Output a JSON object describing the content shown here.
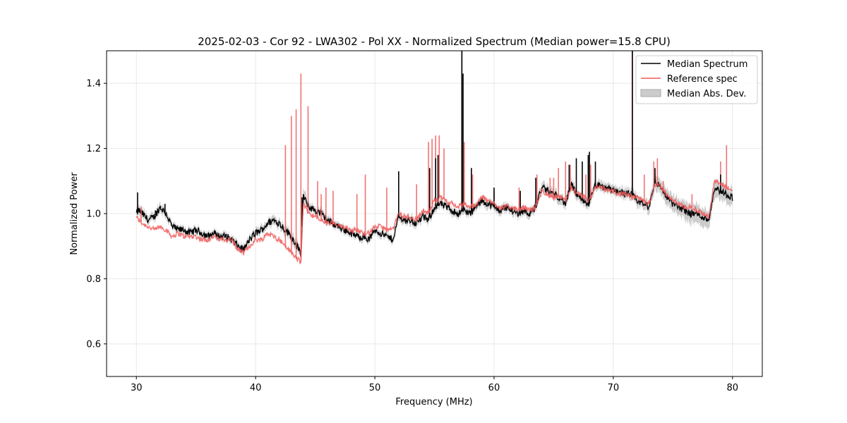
{
  "chart_data": {
    "type": "line",
    "title": "2025-02-03 - Cor 92 - LWA302 - Pol XX - Normalized Spectrum (Median power=15.8 CPU)",
    "xlabel": "Frequency (MHz)",
    "ylabel": "Normalized Power",
    "xlim": [
      27.5,
      82.5
    ],
    "ylim": [
      0.5,
      1.5
    ],
    "xticks": [
      30,
      40,
      50,
      60,
      70,
      80
    ],
    "yticks": [
      0.6,
      0.8,
      1.0,
      1.2,
      1.4
    ],
    "xtick_labels": [
      "30",
      "40",
      "50",
      "60",
      "70",
      "80"
    ],
    "ytick_labels": [
      "0.6",
      "0.8",
      "1.0",
      "1.2",
      "1.4"
    ],
    "grid": true,
    "legend_position": "top-right",
    "legend": [
      "Median Spectrum",
      "Reference spec",
      "Median Abs. Dev."
    ],
    "colors": {
      "median": "#000000",
      "reference": "#f05a5a",
      "mad": "#bbbbbb",
      "overlap": "#8b0000"
    },
    "series": [
      {
        "name": "Median Spectrum",
        "x": [
          30.0,
          30.2,
          30.5,
          31.0,
          31.5,
          32.0,
          32.5,
          33.0,
          33.5,
          34.0,
          34.5,
          35.0,
          35.5,
          36.0,
          36.5,
          37.0,
          37.5,
          38.0,
          38.5,
          39.0,
          39.5,
          40.0,
          40.5,
          41.0,
          41.5,
          42.0,
          42.5,
          43.0,
          43.5,
          43.8,
          44.0,
          44.5,
          45.0,
          45.5,
          46.0,
          46.5,
          47.0,
          47.5,
          48.0,
          48.5,
          49.0,
          49.5,
          50.0,
          50.5,
          51.0,
          51.5,
          52.0,
          52.5,
          53.0,
          53.5,
          54.0,
          54.5,
          55.0,
          55.5,
          56.0,
          56.5,
          57.0,
          57.5,
          58.0,
          58.5,
          59.0,
          59.5,
          60.0,
          60.5,
          61.0,
          61.5,
          62.0,
          62.5,
          63.0,
          63.5,
          64.0,
          64.5,
          65.0,
          65.5,
          66.0,
          66.5,
          67.0,
          67.5,
          68.0,
          68.5,
          69.0,
          69.5,
          70.0,
          70.5,
          71.0,
          71.5,
          72.0,
          72.5,
          73.0,
          73.5,
          74.0,
          74.5,
          75.0,
          75.5,
          76.0,
          76.5,
          77.0,
          77.5,
          78.0,
          78.5,
          79.0,
          79.5,
          80.0
        ],
        "y": [
          1.0,
          1.01,
          1.0,
          0.98,
          0.99,
          1.02,
          1.0,
          0.96,
          0.95,
          0.95,
          0.94,
          0.95,
          0.94,
          0.93,
          0.94,
          0.93,
          0.93,
          0.92,
          0.9,
          0.89,
          0.92,
          0.94,
          0.95,
          0.97,
          0.98,
          0.97,
          0.95,
          0.93,
          0.9,
          0.87,
          1.05,
          1.02,
          1.01,
          1.0,
          0.98,
          0.97,
          0.96,
          0.95,
          0.94,
          0.93,
          0.93,
          0.92,
          0.95,
          0.94,
          0.93,
          0.92,
          0.99,
          0.98,
          0.98,
          0.97,
          0.99,
          0.98,
          1.02,
          1.03,
          1.02,
          1.01,
          1.0,
          1.01,
          1.0,
          1.02,
          1.04,
          1.03,
          1.02,
          1.01,
          1.02,
          1.01,
          1.0,
          1.01,
          1.0,
          1.02,
          1.08,
          1.07,
          1.06,
          1.05,
          1.03,
          1.09,
          1.05,
          1.04,
          1.03,
          1.09,
          1.08,
          1.08,
          1.07,
          1.07,
          1.06,
          1.06,
          1.04,
          1.03,
          1.02,
          1.1,
          1.08,
          1.05,
          1.03,
          1.02,
          1.01,
          1.0,
          1.0,
          0.99,
          0.98,
          1.08,
          1.07,
          1.06,
          1.05
        ]
      },
      {
        "name": "Reference spec",
        "x": [
          30.0,
          30.2,
          30.5,
          31.0,
          31.5,
          32.0,
          32.5,
          33.0,
          33.5,
          34.0,
          34.5,
          35.0,
          35.5,
          36.0,
          36.5,
          37.0,
          37.5,
          38.0,
          38.5,
          39.0,
          39.5,
          40.0,
          40.5,
          41.0,
          41.5,
          42.0,
          42.5,
          43.0,
          43.5,
          43.8,
          44.0,
          44.5,
          45.0,
          45.5,
          46.0,
          46.5,
          47.0,
          47.5,
          48.0,
          48.5,
          49.0,
          49.5,
          50.0,
          50.5,
          51.0,
          51.5,
          52.0,
          52.5,
          53.0,
          53.5,
          54.0,
          54.5,
          55.0,
          55.5,
          56.0,
          56.5,
          57.0,
          57.5,
          58.0,
          58.5,
          59.0,
          59.5,
          60.0,
          60.5,
          61.0,
          61.5,
          62.0,
          62.5,
          63.0,
          63.5,
          64.0,
          64.5,
          65.0,
          65.5,
          66.0,
          66.5,
          67.0,
          67.5,
          68.0,
          68.5,
          69.0,
          69.5,
          70.0,
          70.5,
          71.0,
          71.5,
          72.0,
          72.5,
          73.0,
          73.5,
          74.0,
          74.5,
          75.0,
          75.5,
          76.0,
          76.5,
          77.0,
          77.5,
          78.0,
          78.5,
          79.0,
          79.5,
          80.0
        ],
        "y": [
          0.99,
          0.98,
          0.97,
          0.96,
          0.95,
          0.96,
          0.95,
          0.93,
          0.94,
          0.93,
          0.93,
          0.93,
          0.92,
          0.92,
          0.93,
          0.92,
          0.92,
          0.92,
          0.89,
          0.88,
          0.9,
          0.92,
          0.92,
          0.94,
          0.93,
          0.92,
          0.9,
          0.88,
          0.86,
          0.85,
          1.03,
          1.0,
          0.99,
          0.98,
          0.97,
          0.97,
          0.96,
          0.96,
          0.95,
          0.95,
          0.94,
          0.94,
          0.96,
          0.96,
          0.95,
          0.95,
          1.0,
          0.99,
          0.99,
          0.98,
          1.01,
          1.0,
          1.04,
          1.05,
          1.04,
          1.03,
          1.02,
          1.03,
          1.02,
          1.03,
          1.05,
          1.04,
          1.03,
          1.02,
          1.02,
          1.02,
          1.01,
          1.02,
          1.01,
          1.02,
          1.07,
          1.06,
          1.05,
          1.05,
          1.04,
          1.08,
          1.06,
          1.05,
          1.04,
          1.08,
          1.08,
          1.07,
          1.07,
          1.06,
          1.06,
          1.05,
          1.05,
          1.04,
          1.03,
          1.09,
          1.08,
          1.06,
          1.04,
          1.03,
          1.02,
          1.02,
          1.01,
          1.0,
          0.99,
          1.1,
          1.09,
          1.08,
          1.07
        ]
      },
      {
        "name": "Median Abs. Dev.",
        "mad": [
          0.01,
          0.015,
          0.015,
          0.012,
          0.012,
          0.014,
          0.012,
          0.01,
          0.01,
          0.01,
          0.01,
          0.01,
          0.01,
          0.01,
          0.01,
          0.01,
          0.01,
          0.01,
          0.012,
          0.012,
          0.01,
          0.012,
          0.012,
          0.012,
          0.012,
          0.012,
          0.014,
          0.014,
          0.015,
          0.015,
          0.02,
          0.012,
          0.012,
          0.012,
          0.012,
          0.01,
          0.01,
          0.01,
          0.01,
          0.01,
          0.01,
          0.01,
          0.01,
          0.01,
          0.01,
          0.01,
          0.012,
          0.012,
          0.012,
          0.012,
          0.012,
          0.012,
          0.012,
          0.012,
          0.012,
          0.012,
          0.012,
          0.012,
          0.012,
          0.012,
          0.012,
          0.012,
          0.012,
          0.012,
          0.012,
          0.012,
          0.012,
          0.012,
          0.012,
          0.012,
          0.014,
          0.014,
          0.014,
          0.014,
          0.014,
          0.014,
          0.014,
          0.014,
          0.014,
          0.014,
          0.014,
          0.014,
          0.014,
          0.014,
          0.014,
          0.016,
          0.016,
          0.016,
          0.018,
          0.02,
          0.022,
          0.022,
          0.024,
          0.024,
          0.024,
          0.026,
          0.026,
          0.026,
          0.024,
          0.026,
          0.026,
          0.024,
          0.024
        ]
      }
    ],
    "spikes_median": [
      [
        30.1,
        1.065
      ],
      [
        31.6,
        1.01
      ],
      [
        32.4,
        1.03
      ],
      [
        43.9,
        1.05
      ],
      [
        44.0,
        1.06
      ],
      [
        52.0,
        1.13
      ],
      [
        54.6,
        1.14
      ],
      [
        55.1,
        1.17
      ],
      [
        55.3,
        1.18
      ],
      [
        57.3,
        1.5
      ],
      [
        57.4,
        1.43
      ],
      [
        58.1,
        1.14
      ],
      [
        60.0,
        1.08
      ],
      [
        62.2,
        1.07
      ],
      [
        63.5,
        1.11
      ],
      [
        66.3,
        1.15
      ],
      [
        66.9,
        1.17
      ],
      [
        67.4,
        1.16
      ],
      [
        67.9,
        1.18
      ],
      [
        68.0,
        1.19
      ],
      [
        68.5,
        1.16
      ],
      [
        71.6,
        1.5
      ],
      [
        73.5,
        1.14
      ],
      [
        79.0,
        1.12
      ]
    ],
    "spikes_reference": [
      [
        30.4,
        1.02
      ],
      [
        42.5,
        1.21
      ],
      [
        43.0,
        1.3
      ],
      [
        43.4,
        1.32
      ],
      [
        43.8,
        1.43
      ],
      [
        44.4,
        1.33
      ],
      [
        45.2,
        1.1
      ],
      [
        45.5,
        1.06
      ],
      [
        45.9,
        1.08
      ],
      [
        46.5,
        1.07
      ],
      [
        48.5,
        1.06
      ],
      [
        49.2,
        1.12
      ],
      [
        51.0,
        1.08
      ],
      [
        53.5,
        1.09
      ],
      [
        54.5,
        1.22
      ],
      [
        54.8,
        1.23
      ],
      [
        55.1,
        1.24
      ],
      [
        55.4,
        1.24
      ],
      [
        55.8,
        1.2
      ],
      [
        57.3,
        1.5
      ],
      [
        57.5,
        1.22
      ],
      [
        58.2,
        1.12
      ],
      [
        60.0,
        1.07
      ],
      [
        62.1,
        1.08
      ],
      [
        63.6,
        1.12
      ],
      [
        64.7,
        1.11
      ],
      [
        65.0,
        1.11
      ],
      [
        65.4,
        1.14
      ],
      [
        66.0,
        1.16
      ],
      [
        66.4,
        1.15
      ],
      [
        67.7,
        1.12
      ],
      [
        68.1,
        1.15
      ],
      [
        71.6,
        1.5
      ],
      [
        72.6,
        1.12
      ],
      [
        73.4,
        1.16
      ],
      [
        73.7,
        1.17
      ],
      [
        74.2,
        1.1
      ],
      [
        76.6,
        1.06
      ],
      [
        79.0,
        1.16
      ],
      [
        79.5,
        1.21
      ]
    ]
  }
}
